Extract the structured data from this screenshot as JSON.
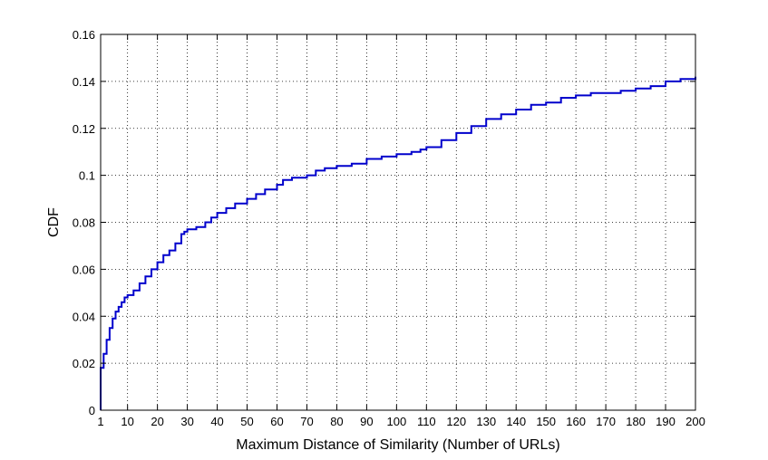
{
  "chart_data": {
    "type": "line",
    "title": "",
    "xlabel": "Maximum Distance of Similarity (Number of URLs)",
    "ylabel": "CDF",
    "xlim": [
      1,
      200
    ],
    "ylim": [
      0,
      0.16
    ],
    "x_ticks": [
      1,
      10,
      20,
      30,
      40,
      50,
      60,
      70,
      80,
      90,
      100,
      110,
      120,
      130,
      140,
      150,
      160,
      170,
      180,
      190,
      200
    ],
    "x_tick_labels": [
      "1",
      "10",
      "20",
      "30",
      "40",
      "50",
      "60",
      "70",
      "80",
      "90",
      "100",
      "110",
      "120",
      "130",
      "140",
      "150",
      "160",
      "170",
      "180",
      "190",
      "200"
    ],
    "y_ticks": [
      0,
      0.02,
      0.04,
      0.06,
      0.08,
      0.1,
      0.12,
      0.14,
      0.16
    ],
    "y_tick_labels": [
      "0",
      "0.02",
      "0.04",
      "0.06",
      "0.08",
      "0.1",
      "0.12",
      "0.14",
      "0.16"
    ],
    "grid": true,
    "grid_style": "dotted",
    "line_color": "#0000cc",
    "series": [
      {
        "x": [
          1,
          2,
          3,
          4,
          5,
          6,
          7,
          8,
          9,
          10,
          12,
          14,
          16,
          18,
          20,
          22,
          24,
          26,
          28,
          29,
          30,
          33,
          36,
          38,
          40,
          43,
          46,
          50,
          53,
          56,
          60,
          62,
          65,
          70,
          73,
          76,
          80,
          85,
          90,
          95,
          100,
          105,
          108,
          110,
          115,
          120,
          125,
          130,
          135,
          140,
          145,
          150,
          155,
          160,
          165,
          170,
          175,
          180,
          185,
          190,
          195,
          200
        ],
        "y": [
          0.018,
          0.024,
          0.03,
          0.035,
          0.039,
          0.042,
          0.044,
          0.046,
          0.048,
          0.049,
          0.051,
          0.054,
          0.057,
          0.06,
          0.063,
          0.066,
          0.068,
          0.071,
          0.075,
          0.076,
          0.077,
          0.078,
          0.08,
          0.082,
          0.084,
          0.086,
          0.088,
          0.09,
          0.092,
          0.094,
          0.096,
          0.098,
          0.099,
          0.1,
          0.102,
          0.103,
          0.104,
          0.105,
          0.107,
          0.108,
          0.109,
          0.11,
          0.111,
          0.112,
          0.115,
          0.118,
          0.121,
          0.124,
          0.126,
          0.128,
          0.13,
          0.131,
          0.133,
          0.134,
          0.135,
          0.135,
          0.136,
          0.137,
          0.138,
          0.14,
          0.141,
          0.142
        ]
      }
    ]
  }
}
